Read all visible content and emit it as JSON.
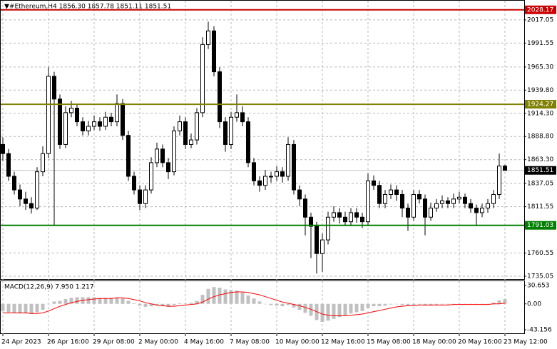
{
  "chart_data": {
    "type": "candlestick",
    "title": "▼#Ethereum,H4  1856.30 1857.78 1851.11 1851.51",
    "categories": [
      "24 Apr 2023",
      null,
      null,
      null,
      null,
      null,
      null,
      null,
      "26 Apr 16:00",
      null,
      null,
      null,
      null,
      null,
      null,
      null,
      "29 Apr 08:00",
      null,
      null,
      null,
      null,
      null,
      null,
      null,
      "2 May 00:00",
      null,
      null,
      null,
      null,
      null,
      null,
      null,
      "4 May 16:00",
      null,
      null,
      null,
      null,
      null,
      null,
      null,
      "7 May 08:00",
      null,
      null,
      null,
      null,
      null,
      null,
      null,
      "10 May 00:00",
      null,
      null,
      null,
      null,
      null,
      null,
      null,
      "12 May 16:00",
      null,
      null,
      null,
      null,
      null,
      null,
      null,
      "15 May 08:00",
      null,
      null,
      null,
      null,
      null,
      null,
      null,
      "18 May 00:00",
      null,
      null,
      null,
      null,
      null,
      null,
      null,
      "20 May 16:00",
      null,
      null,
      null,
      null,
      null,
      null,
      null,
      "23 May 12:00"
    ],
    "ohlc": [
      [
        1880,
        1888,
        1862,
        1870
      ],
      [
        1870,
        1875,
        1840,
        1845
      ],
      [
        1845,
        1850,
        1825,
        1830
      ],
      [
        1830,
        1836,
        1812,
        1820
      ],
      [
        1820,
        1828,
        1808,
        1815
      ],
      [
        1815,
        1822,
        1804,
        1810
      ],
      [
        1810,
        1855,
        1808,
        1850
      ],
      [
        1850,
        1878,
        1845,
        1870
      ],
      [
        1870,
        1965,
        1865,
        1955
      ],
      [
        1955,
        1960,
        1791,
        1930
      ],
      [
        1930,
        1935,
        1875,
        1880
      ],
      [
        1880,
        1922,
        1876,
        1915
      ],
      [
        1915,
        1928,
        1910,
        1920
      ],
      [
        1920,
        1925,
        1900,
        1905
      ],
      [
        1905,
        1910,
        1890,
        1895
      ],
      [
        1895,
        1906,
        1890,
        1900
      ],
      [
        1900,
        1912,
        1896,
        1905
      ],
      [
        1905,
        1910,
        1895,
        1900
      ],
      [
        1900,
        1916,
        1896,
        1910
      ],
      [
        1910,
        1915,
        1900,
        1905
      ],
      [
        1905,
        1935,
        1900,
        1925
      ],
      [
        1925,
        1930,
        1885,
        1890
      ],
      [
        1890,
        1895,
        1840,
        1845
      ],
      [
        1845,
        1850,
        1825,
        1830
      ],
      [
        1830,
        1835,
        1808,
        1815
      ],
      [
        1815,
        1835,
        1810,
        1830
      ],
      [
        1830,
        1866,
        1826,
        1860
      ],
      [
        1860,
        1882,
        1855,
        1875
      ],
      [
        1875,
        1880,
        1855,
        1860
      ],
      [
        1860,
        1865,
        1842,
        1850
      ],
      [
        1850,
        1900,
        1846,
        1895
      ],
      [
        1895,
        1912,
        1890,
        1905
      ],
      [
        1905,
        1910,
        1875,
        1880
      ],
      [
        1880,
        1892,
        1876,
        1885
      ],
      [
        1885,
        1920,
        1880,
        1915
      ],
      [
        1915,
        1998,
        1910,
        1990
      ],
      [
        1990,
        2015,
        1985,
        2005
      ],
      [
        2005,
        2010,
        1955,
        1960
      ],
      [
        1960,
        1965,
        1898,
        1905
      ],
      [
        1905,
        1910,
        1872,
        1880
      ],
      [
        1880,
        1916,
        1875,
        1910
      ],
      [
        1910,
        1935,
        1905,
        1915
      ],
      [
        1915,
        1922,
        1900,
        1905
      ],
      [
        1905,
        1910,
        1855,
        1860
      ],
      [
        1860,
        1865,
        1835,
        1840
      ],
      [
        1840,
        1845,
        1828,
        1835
      ],
      [
        1835,
        1852,
        1830,
        1845
      ],
      [
        1845,
        1850,
        1838,
        1845
      ],
      [
        1845,
        1856,
        1840,
        1850
      ],
      [
        1850,
        1855,
        1838,
        1845
      ],
      [
        1845,
        1888,
        1840,
        1880
      ],
      [
        1880,
        1885,
        1825,
        1830
      ],
      [
        1830,
        1835,
        1812,
        1820
      ],
      [
        1820,
        1825,
        1780,
        1800
      ],
      [
        1800,
        1805,
        1755,
        1790
      ],
      [
        1790,
        1795,
        1738,
        1760
      ],
      [
        1760,
        1782,
        1740,
        1775
      ],
      [
        1775,
        1806,
        1770,
        1800
      ],
      [
        1800,
        1812,
        1795,
        1805
      ],
      [
        1805,
        1810,
        1793,
        1800
      ],
      [
        1800,
        1806,
        1790,
        1795
      ],
      [
        1795,
        1810,
        1790,
        1805
      ],
      [
        1805,
        1810,
        1794,
        1800
      ],
      [
        1800,
        1805,
        1788,
        1795
      ],
      [
        1795,
        1848,
        1790,
        1840
      ],
      [
        1840,
        1846,
        1830,
        1835
      ],
      [
        1835,
        1840,
        1810,
        1815
      ],
      [
        1815,
        1830,
        1810,
        1825
      ],
      [
        1825,
        1836,
        1820,
        1830
      ],
      [
        1830,
        1835,
        1818,
        1825
      ],
      [
        1825,
        1830,
        1800,
        1810
      ],
      [
        1810,
        1815,
        1785,
        1800
      ],
      [
        1800,
        1830,
        1796,
        1825
      ],
      [
        1825,
        1830,
        1815,
        1820
      ],
      [
        1820,
        1825,
        1780,
        1800
      ],
      [
        1800,
        1816,
        1796,
        1810
      ],
      [
        1810,
        1820,
        1806,
        1815
      ],
      [
        1815,
        1824,
        1810,
        1818
      ],
      [
        1818,
        1822,
        1810,
        1815
      ],
      [
        1815,
        1826,
        1810,
        1820
      ],
      [
        1820,
        1828,
        1815,
        1822
      ],
      [
        1822,
        1826,
        1810,
        1815
      ],
      [
        1815,
        1820,
        1805,
        1810
      ],
      [
        1810,
        1814,
        1790,
        1805
      ],
      [
        1805,
        1815,
        1800,
        1810
      ],
      [
        1810,
        1820,
        1805,
        1815
      ],
      [
        1815,
        1830,
        1810,
        1825
      ],
      [
        1825,
        1870,
        1820,
        1856.3
      ],
      [
        1856.3,
        1857.78,
        1851.11,
        1851.51
      ]
    ],
    "up_color": "#ffffff",
    "down_color": "#000000",
    "ylim": [
      1731.13,
      2038.2
    ],
    "yticks": [
      2017.05,
      1991.55,
      {
        "value": 1965.3,
        "label": "1965.30"
      },
      {
        "value": 1939.8,
        "label": "1939.80"
      },
      {
        "value": 1914.3,
        "label": "1914.30"
      },
      {
        "value": 1888.8,
        "label": "1888.80"
      },
      {
        "value": 1863.3,
        "label": "1863.30"
      },
      1837.05,
      1811.55,
      1760.55,
      1735.05
    ],
    "grid": true,
    "levels": [
      {
        "value": 2028.17,
        "color": "#cc0000"
      },
      {
        "value": 1924.27,
        "color": "#808000"
      },
      {
        "value": 1791.03,
        "color": "#008000"
      }
    ],
    "macd": {
      "label": "MACD(12,26,9) 7.950 1.217",
      "hist_color": "#c0c0c0",
      "signal_color": "#ff0000",
      "histogram": [
        -12,
        -14,
        -15,
        -16,
        -16,
        -17,
        -14,
        -10,
        0,
        4,
        5,
        8,
        10,
        11,
        11,
        11,
        11,
        10,
        10,
        10,
        11,
        9,
        5,
        1,
        -3,
        -5,
        -4,
        -3,
        -4,
        -5,
        -2,
        1,
        1,
        2,
        5,
        15,
        25,
        28,
        27,
        24,
        23,
        22,
        19,
        14,
        9,
        4,
        0,
        -2,
        -3,
        -4,
        -2,
        -6,
        -10,
        -15,
        -20,
        -27,
        -30,
        -28,
        -25,
        -22,
        -19,
        -16,
        -14,
        -12,
        -7,
        -4,
        -4,
        -3,
        -1,
        0,
        -2,
        -3,
        -2,
        -1,
        -3,
        -3,
        -2,
        -1,
        -1,
        0,
        0,
        0,
        -1,
        -1,
        -1,
        0,
        2,
        6,
        7.95
      ],
      "signal": [
        -15,
        -15,
        -15,
        -15,
        -15,
        -16,
        -16,
        -15,
        -12,
        -8,
        -4,
        -1,
        2,
        4,
        6,
        7,
        8,
        9,
        9,
        9,
        10,
        10,
        9,
        7,
        5,
        2,
        0,
        -2,
        -3,
        -4,
        -4,
        -3,
        -2,
        -1,
        0,
        3,
        8,
        12,
        15,
        17,
        19,
        20,
        20,
        19,
        17,
        15,
        12,
        9,
        6,
        3,
        1,
        -1,
        -3,
        -6,
        -9,
        -13,
        -17,
        -19,
        -20,
        -20,
        -20,
        -19,
        -18,
        -17,
        -15,
        -13,
        -11,
        -9,
        -7,
        -5,
        -4,
        -3,
        -3,
        -2,
        -2,
        -2,
        -2,
        -2,
        -2,
        -1,
        -1,
        -1,
        -1,
        -1,
        -1,
        -1,
        0,
        0,
        1.217
      ],
      "ylim": [
        -50.3,
        37.8
      ],
      "yticks": [
        30.653,
        {
          "value": 0,
          "label": "0.00"
        },
        -43.156
      ]
    }
  }
}
